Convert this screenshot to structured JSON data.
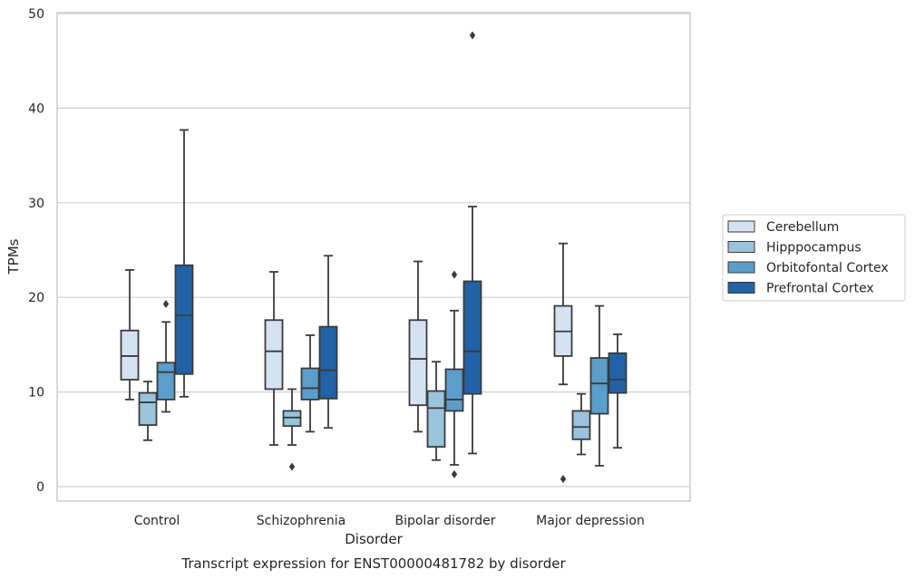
{
  "chart_data": {
    "type": "box",
    "title": "",
    "caption": "Transcript expression for ENST00000481782 by disorder",
    "xlabel": "Disorder",
    "ylabel": "TPMs",
    "ylim": [
      -1.5,
      50
    ],
    "yticks": [
      0,
      10,
      20,
      30,
      40,
      50
    ],
    "grid": "horizontal",
    "legend_position": "right",
    "categories": [
      "Control",
      "Schizophrenia",
      "Bipolar disorder",
      "Major depression"
    ],
    "series": [
      {
        "name": "Cerebellum",
        "color": "#d4e2f1",
        "boxes": [
          {
            "whisker_low": 9.2,
            "q1": 11.3,
            "median": 13.8,
            "q3": 16.5,
            "whisker_high": 22.9,
            "outliers": []
          },
          {
            "whisker_low": 4.4,
            "q1": 10.3,
            "median": 14.3,
            "q3": 17.6,
            "whisker_high": 22.7,
            "outliers": []
          },
          {
            "whisker_low": 5.8,
            "q1": 8.6,
            "median": 13.5,
            "q3": 17.6,
            "whisker_high": 23.8,
            "outliers": []
          },
          {
            "whisker_low": 10.8,
            "q1": 13.8,
            "median": 16.4,
            "q3": 19.1,
            "whisker_high": 25.7,
            "outliers": [
              0.8
            ]
          }
        ]
      },
      {
        "name": "Hipppocampus",
        "color": "#9ac3dc",
        "boxes": [
          {
            "whisker_low": 4.9,
            "q1": 6.5,
            "median": 8.9,
            "q3": 9.9,
            "whisker_high": 11.1,
            "outliers": []
          },
          {
            "whisker_low": 4.4,
            "q1": 6.4,
            "median": 7.3,
            "q3": 8.0,
            "whisker_high": 10.3,
            "outliers": [
              2.1
            ]
          },
          {
            "whisker_low": 2.8,
            "q1": 4.2,
            "median": 8.3,
            "q3": 10.1,
            "whisker_high": 13.2,
            "outliers": []
          },
          {
            "whisker_low": 3.4,
            "q1": 5.0,
            "median": 6.3,
            "q3": 8.0,
            "whisker_high": 9.8,
            "outliers": []
          }
        ]
      },
      {
        "name": "Orbitofontal Cortex",
        "color": "#5a9ec9",
        "boxes": [
          {
            "whisker_low": 7.9,
            "q1": 9.2,
            "median": 12.1,
            "q3": 13.1,
            "whisker_high": 17.4,
            "outliers": [
              19.3
            ]
          },
          {
            "whisker_low": 5.8,
            "q1": 9.2,
            "median": 10.4,
            "q3": 12.5,
            "whisker_high": 16.0,
            "outliers": []
          },
          {
            "whisker_low": 2.3,
            "q1": 8.0,
            "median": 9.2,
            "q3": 12.4,
            "whisker_high": 18.6,
            "outliers": [
              1.3,
              22.4
            ]
          },
          {
            "whisker_low": 2.2,
            "q1": 7.7,
            "median": 10.9,
            "q3": 13.6,
            "whisker_high": 19.1,
            "outliers": []
          }
        ]
      },
      {
        "name": "Prefrontal Cortex",
        "color": "#2262a6",
        "boxes": [
          {
            "whisker_low": 9.5,
            "q1": 11.9,
            "median": 18.1,
            "q3": 23.4,
            "whisker_high": 37.7,
            "outliers": []
          },
          {
            "whisker_low": 6.2,
            "q1": 9.3,
            "median": 12.3,
            "q3": 16.9,
            "whisker_high": 24.4,
            "outliers": []
          },
          {
            "whisker_low": 3.5,
            "q1": 9.8,
            "median": 14.3,
            "q3": 21.7,
            "whisker_high": 29.6,
            "outliers": [
              47.7
            ]
          },
          {
            "whisker_low": 4.1,
            "q1": 9.9,
            "median": 11.3,
            "q3": 14.1,
            "whisker_high": 16.1,
            "outliers": []
          }
        ]
      }
    ]
  }
}
